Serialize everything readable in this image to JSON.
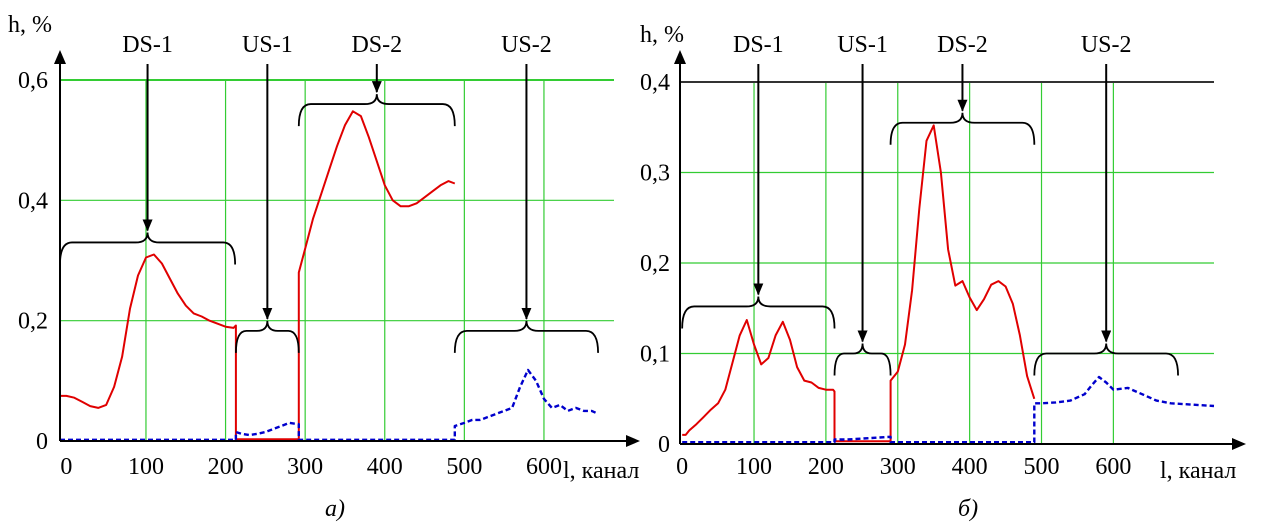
{
  "chart_data": [
    {
      "type": "line",
      "caption": "а)",
      "xlabel": "l, канал",
      "ylabel": "h, %",
      "xlim": [
        -8,
        688
      ],
      "ylim": [
        0,
        0.6
      ],
      "grid": true,
      "x_ticks": [
        0,
        100,
        200,
        300,
        400,
        500,
        600
      ],
      "x_tick_labels": [
        "0",
        "100",
        "200",
        "300",
        "400",
        "500",
        "600"
      ],
      "y_ticks": [
        0,
        0.2,
        0.4,
        0.6
      ],
      "y_tick_labels": [
        "0",
        "0,2",
        "0,4",
        "0,6"
      ],
      "colors": {
        "solid": "#e00000",
        "dashed": "#0000cc",
        "grid": "#33cc33"
      },
      "regions": [
        {
          "label": "DS-1",
          "x0": -8,
          "x1": 212,
          "brace_y": 0.33
        },
        {
          "label": "US-1",
          "x0": 213,
          "x1": 292,
          "brace_y": 0.183
        },
        {
          "label": "DS-2",
          "x0": 292,
          "x1": 488,
          "brace_y": 0.56
        },
        {
          "label": "US-2",
          "x0": 488,
          "x1": 668,
          "brace_y": 0.183
        }
      ],
      "series": [
        {
          "style": "solid",
          "color": "#e00000",
          "x": [
            -8,
            0,
            10,
            20,
            30,
            40,
            50,
            60,
            70,
            80,
            90,
            100,
            110,
            120,
            130,
            140,
            150,
            160,
            170,
            180,
            190,
            200,
            210,
            213,
            213,
            292,
            292,
            300,
            310,
            320,
            330,
            340,
            350,
            360,
            370,
            380,
            390,
            400,
            410,
            420,
            430,
            440,
            450,
            460,
            470,
            480,
            488
          ],
          "y": [
            0.075,
            0.075,
            0.072,
            0.065,
            0.058,
            0.055,
            0.06,
            0.09,
            0.14,
            0.22,
            0.275,
            0.305,
            0.31,
            0.295,
            0.27,
            0.245,
            0.225,
            0.212,
            0.207,
            0.2,
            0.195,
            0.19,
            0.188,
            0.192,
            0.003,
            0.003,
            0.28,
            0.32,
            0.37,
            0.41,
            0.45,
            0.49,
            0.525,
            0.548,
            0.54,
            0.505,
            0.465,
            0.425,
            0.4,
            0.39,
            0.39,
            0.395,
            0.405,
            0.415,
            0.425,
            0.432,
            0.428
          ]
        },
        {
          "style": "dashed",
          "color": "#0000cc",
          "x": [
            -8,
            213,
            213,
            220,
            230,
            240,
            250,
            260,
            270,
            280,
            292,
            292,
            488,
            488,
            500,
            510,
            520,
            530,
            540,
            550,
            560,
            570,
            580,
            590,
            600,
            610,
            620,
            630,
            640,
            650,
            660,
            668
          ],
          "y": [
            0.002,
            0.002,
            0.015,
            0.012,
            0.01,
            0.012,
            0.015,
            0.02,
            0.025,
            0.03,
            0.028,
            0.002,
            0.002,
            0.025,
            0.03,
            0.035,
            0.035,
            0.04,
            0.045,
            0.05,
            0.055,
            0.09,
            0.118,
            0.1,
            0.07,
            0.055,
            0.06,
            0.05,
            0.055,
            0.05,
            0.05,
            0.045
          ]
        }
      ]
    },
    {
      "type": "line",
      "caption": "б)",
      "xlabel": "l, канал",
      "ylabel": "h, %",
      "xlim": [
        -3,
        740
      ],
      "ylim": [
        0,
        0.4
      ],
      "grid": true,
      "x_ticks": [
        0,
        100,
        200,
        300,
        400,
        500,
        600
      ],
      "x_tick_labels": [
        "0",
        "100",
        "200",
        "300",
        "400",
        "500",
        "600"
      ],
      "y_ticks": [
        0,
        0.1,
        0.2,
        0.3,
        0.4
      ],
      "y_tick_labels": [
        "0",
        "0,1",
        "0,2",
        "0,3",
        "0,4"
      ],
      "colors": {
        "solid": "#e00000",
        "dashed": "#0000cc",
        "grid": "#33cc33"
      },
      "regions": [
        {
          "label": "DS-1",
          "x0": 0,
          "x1": 212,
          "brace_y": 0.152
        },
        {
          "label": "US-1",
          "x0": 212,
          "x1": 290,
          "brace_y": 0.1
        },
        {
          "label": "DS-2",
          "x0": 290,
          "x1": 490,
          "brace_y": 0.355
        },
        {
          "label": "US-2",
          "x0": 490,
          "x1": 690,
          "brace_y": 0.1
        }
      ],
      "series": [
        {
          "style": "solid",
          "color": "#e00000",
          "x": [
            0,
            5,
            10,
            20,
            30,
            40,
            50,
            60,
            70,
            80,
            90,
            100,
            110,
            120,
            130,
            140,
            150,
            160,
            170,
            180,
            190,
            200,
            210,
            212,
            212,
            290,
            290,
            300,
            310,
            320,
            330,
            340,
            350,
            360,
            370,
            380,
            390,
            400,
            410,
            420,
            430,
            440,
            450,
            460,
            470,
            480,
            490
          ],
          "y": [
            0.01,
            0.01,
            0.015,
            0.022,
            0.03,
            0.038,
            0.045,
            0.06,
            0.09,
            0.12,
            0.137,
            0.11,
            0.088,
            0.095,
            0.12,
            0.135,
            0.115,
            0.085,
            0.07,
            0.068,
            0.062,
            0.06,
            0.06,
            0.058,
            0.003,
            0.003,
            0.07,
            0.08,
            0.11,
            0.17,
            0.26,
            0.335,
            0.352,
            0.3,
            0.215,
            0.175,
            0.18,
            0.162,
            0.148,
            0.16,
            0.176,
            0.18,
            0.174,
            0.155,
            0.12,
            0.075,
            0.05
          ]
        },
        {
          "style": "dashed",
          "color": "#0000cc",
          "x": [
            0,
            212,
            212,
            230,
            250,
            270,
            290,
            290,
            490,
            490,
            500,
            520,
            540,
            560,
            570,
            580,
            590,
            600,
            620,
            640,
            660,
            680,
            700,
            720,
            740
          ],
          "y": [
            0.002,
            0.002,
            0.005,
            0.005,
            0.006,
            0.007,
            0.008,
            0.002,
            0.002,
            0.045,
            0.045,
            0.046,
            0.048,
            0.055,
            0.065,
            0.074,
            0.068,
            0.06,
            0.062,
            0.055,
            0.048,
            0.045,
            0.044,
            0.043,
            0.042
          ]
        }
      ]
    }
  ]
}
